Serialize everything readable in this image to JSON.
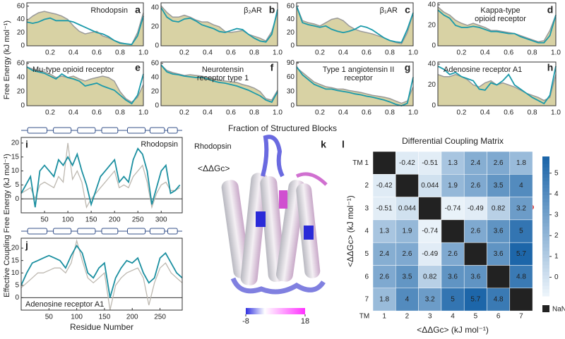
{
  "figure": {
    "top_ylabel": "Free Energy (kJ mol⁻¹)",
    "top_xlabel": "Fraction of Structured Blocks",
    "bottom_ylabel": "Effective Coupling Free Energy (kJ mol⁻¹)"
  },
  "chart_data": [
    {
      "type": "area-line",
      "panel": "a",
      "title": [
        "Rhodopsin"
      ],
      "x": [
        0,
        0.05,
        0.1,
        0.15,
        0.2,
        0.25,
        0.3,
        0.35,
        0.4,
        0.45,
        0.5,
        0.55,
        0.6,
        0.65,
        0.7,
        0.75,
        0.8,
        0.85,
        0.9,
        0.95,
        1
      ],
      "series": [
        {
          "color": "#d8d2a4",
          "values": [
            38,
            45,
            50,
            52,
            50,
            48,
            45,
            40,
            30,
            22,
            18,
            20,
            22,
            15,
            12,
            8,
            5,
            3,
            2,
            20,
            50
          ]
        },
        {
          "color": "#1b9aaa",
          "values": [
            36,
            34,
            36,
            40,
            42,
            38,
            38,
            38,
            36,
            32,
            28,
            24,
            20,
            18,
            14,
            8,
            4,
            3,
            2,
            15,
            45
          ]
        }
      ],
      "xlim": [
        0,
        1
      ],
      "xticks": [
        0.2,
        0.4,
        0.6,
        0.8,
        {
          "value": 1,
          "label": "1.0"
        }
      ],
      "ylim": [
        0,
        65
      ],
      "yticks": [
        0,
        20,
        40,
        60
      ]
    },
    {
      "type": "area-line",
      "panel": "b",
      "title": [
        "β₂AR"
      ],
      "x": [
        0,
        0.05,
        0.1,
        0.15,
        0.2,
        0.25,
        0.3,
        0.35,
        0.4,
        0.45,
        0.5,
        0.55,
        0.6,
        0.65,
        0.7,
        0.75,
        0.8,
        0.85,
        0.9,
        0.95,
        1
      ],
      "series": [
        {
          "color": "#d8d2a4",
          "values": [
            42,
            35,
            30,
            30,
            32,
            30,
            27,
            25,
            25,
            22,
            20,
            15,
            14,
            15,
            16,
            12,
            10,
            8,
            5,
            15,
            35
          ]
        },
        {
          "color": "#1b9aaa",
          "values": [
            40,
            30,
            26,
            25,
            28,
            29,
            26,
            22,
            20,
            18,
            15,
            14,
            16,
            18,
            17,
            12,
            8,
            5,
            4,
            12,
            38
          ]
        }
      ],
      "xlim": [
        0,
        1
      ],
      "xticks": [
        0.2,
        0.4,
        0.6,
        0.8,
        {
          "value": 1,
          "label": "1.0"
        }
      ],
      "ylim": [
        0,
        45
      ],
      "yticks": [
        0,
        20,
        40
      ]
    },
    {
      "type": "area-line",
      "panel": "c",
      "title": [
        "β₁AR"
      ],
      "x": [
        0,
        0.05,
        0.1,
        0.15,
        0.2,
        0.25,
        0.3,
        0.35,
        0.4,
        0.45,
        0.5,
        0.55,
        0.6,
        0.65,
        0.7,
        0.75,
        0.8,
        0.85,
        0.9,
        0.95,
        1
      ],
      "series": [
        {
          "color": "#d8d2a4",
          "values": [
            60,
            38,
            35,
            33,
            30,
            35,
            40,
            42,
            38,
            30,
            25,
            22,
            20,
            18,
            15,
            12,
            8,
            5,
            3,
            20,
            50
          ]
        },
        {
          "color": "#1b9aaa",
          "values": [
            60,
            35,
            32,
            30,
            28,
            30,
            25,
            22,
            20,
            22,
            25,
            30,
            28,
            24,
            18,
            12,
            8,
            6,
            5,
            25,
            50
          ]
        }
      ],
      "xlim": [
        0,
        1
      ],
      "xticks": [
        0.2,
        0.4,
        0.6,
        0.8,
        {
          "value": 1,
          "label": "1.0"
        }
      ],
      "ylim": [
        0,
        65
      ],
      "yticks": [
        0,
        20,
        40,
        60
      ]
    },
    {
      "type": "area-line",
      "panel": "d",
      "title": [
        "Kappa-type",
        "opioid receptor"
      ],
      "x": [
        0,
        0.05,
        0.1,
        0.15,
        0.2,
        0.25,
        0.3,
        0.35,
        0.4,
        0.45,
        0.5,
        0.55,
        0.6,
        0.65,
        0.7,
        0.75,
        0.8,
        0.85,
        0.9,
        0.95,
        1
      ],
      "series": [
        {
          "color": "#d8d2a4",
          "values": [
            38,
            33,
            30,
            25,
            22,
            20,
            22,
            20,
            18,
            15,
            15,
            14,
            13,
            12,
            10,
            8,
            6,
            4,
            5,
            15,
            30
          ]
        },
        {
          "color": "#1b9aaa",
          "values": [
            35,
            30,
            27,
            20,
            18,
            18,
            19,
            18,
            16,
            14,
            14,
            13,
            12,
            12,
            9,
            7,
            5,
            3,
            3,
            10,
            30
          ]
        }
      ],
      "xlim": [
        0,
        1
      ],
      "xticks": [
        0.2,
        0.4,
        0.6,
        0.8,
        {
          "value": 1,
          "label": "1.0"
        }
      ],
      "ylim": [
        0,
        42
      ],
      "yticks": [
        0,
        20,
        40
      ]
    },
    {
      "type": "area-line",
      "panel": "e",
      "title": [
        "Mu-type opioid receptor"
      ],
      "x": [
        0,
        0.05,
        0.1,
        0.15,
        0.2,
        0.25,
        0.3,
        0.35,
        0.4,
        0.45,
        0.5,
        0.55,
        0.6,
        0.65,
        0.7,
        0.75,
        0.8,
        0.85,
        0.9,
        0.95,
        1
      ],
      "series": [
        {
          "color": "#d8d2a4",
          "values": [
            55,
            52,
            50,
            48,
            45,
            40,
            42,
            40,
            42,
            38,
            35,
            38,
            40,
            42,
            40,
            35,
            20,
            10,
            5,
            12,
            30
          ]
        },
        {
          "color": "#1b9aaa",
          "values": [
            55,
            50,
            48,
            46,
            42,
            38,
            45,
            40,
            38,
            35,
            28,
            30,
            32,
            28,
            25,
            22,
            15,
            8,
            3,
            15,
            45
          ]
        }
      ],
      "xlim": [
        0,
        1
      ],
      "xticks": [
        0.2,
        0.4,
        0.6,
        0.8,
        {
          "value": 1,
          "label": "1.0"
        }
      ],
      "ylim": [
        0,
        62
      ],
      "yticks": [
        0,
        20,
        40,
        60
      ]
    },
    {
      "type": "area-line",
      "panel": "f",
      "title": [
        "Neurotensin",
        "receptor type 1"
      ],
      "x": [
        0,
        0.05,
        0.1,
        0.15,
        0.2,
        0.25,
        0.3,
        0.35,
        0.4,
        0.45,
        0.5,
        0.55,
        0.6,
        0.65,
        0.7,
        0.75,
        0.8,
        0.85,
        0.9,
        0.95,
        1
      ],
      "series": [
        {
          "color": "#d8d2a4",
          "values": [
            58,
            50,
            47,
            45,
            43,
            44,
            43,
            42,
            40,
            38,
            36,
            35,
            34,
            33,
            30,
            28,
            25,
            20,
            10,
            8,
            22
          ]
        },
        {
          "color": "#1b9aaa",
          "values": [
            58,
            48,
            45,
            44,
            42,
            41,
            40,
            40,
            38,
            35,
            33,
            32,
            30,
            28,
            25,
            22,
            18,
            14,
            8,
            5,
            20
          ]
        }
      ],
      "xlim": [
        0,
        1
      ],
      "xticks": [
        0.2,
        0.4,
        0.6,
        0.8,
        {
          "value": 1,
          "label": "1.0"
        }
      ],
      "ylim": [
        0,
        62
      ],
      "yticks": [
        0,
        20,
        40,
        60
      ]
    },
    {
      "type": "area-line",
      "panel": "g",
      "title": [
        "Type 1 angiotensin II",
        "receptor"
      ],
      "x": [
        0,
        0.05,
        0.1,
        0.15,
        0.2,
        0.25,
        0.3,
        0.35,
        0.4,
        0.45,
        0.5,
        0.55,
        0.6,
        0.65,
        0.7,
        0.75,
        0.8,
        0.85,
        0.9,
        0.95,
        1
      ],
      "series": [
        {
          "color": "#d8d2a4",
          "values": [
            80,
            70,
            60,
            50,
            45,
            40,
            38,
            35,
            35,
            32,
            30,
            28,
            25,
            22,
            20,
            18,
            15,
            10,
            5,
            10,
            40
          ]
        },
        {
          "color": "#1b9aaa",
          "values": [
            82,
            65,
            55,
            45,
            40,
            35,
            35,
            32,
            30,
            28,
            25,
            23,
            20,
            18,
            15,
            12,
            8,
            3,
            0,
            5,
            60
          ]
        }
      ],
      "xlim": [
        0,
        1
      ],
      "xticks": [
        0.2,
        0.4,
        0.6,
        0.8,
        {
          "value": 1,
          "label": "1.0"
        }
      ],
      "ylim": [
        0,
        92
      ],
      "yticks": [
        0,
        30,
        60,
        90
      ]
    },
    {
      "type": "area-line",
      "panel": "h",
      "title": [
        "Adenosine receptor A1"
      ],
      "x": [
        0,
        0.05,
        0.1,
        0.15,
        0.2,
        0.25,
        0.3,
        0.35,
        0.4,
        0.45,
        0.5,
        0.55,
        0.6,
        0.65,
        0.7,
        0.75,
        0.8,
        0.85,
        0.9,
        0.95,
        1
      ],
      "series": [
        {
          "color": "#d8d2a4",
          "values": [
            30,
            28,
            28,
            30,
            28,
            25,
            20,
            18,
            22,
            24,
            20,
            22,
            20,
            18,
            15,
            12,
            10,
            8,
            5,
            8,
            30
          ]
        },
        {
          "color": "#1b9aaa",
          "values": [
            38,
            35,
            30,
            32,
            28,
            26,
            24,
            16,
            15,
            22,
            20,
            24,
            30,
            20,
            16,
            12,
            8,
            5,
            2,
            10,
            38
          ]
        }
      ],
      "xlim": [
        0,
        1
      ],
      "xticks": [
        0.2,
        0.4,
        0.6,
        0.8,
        {
          "value": 1,
          "label": "1.0"
        }
      ],
      "ylim": [
        0,
        42
      ],
      "yticks": [
        0,
        20,
        40
      ]
    },
    {
      "type": "line",
      "panel": "i",
      "title": "Rhodopsin",
      "x": [
        0,
        10,
        20,
        30,
        40,
        50,
        60,
        70,
        80,
        90,
        100,
        110,
        120,
        130,
        140,
        150,
        160,
        170,
        180,
        190,
        200,
        210,
        220,
        230,
        240,
        250,
        260,
        270,
        280,
        290,
        300,
        310,
        320,
        330,
        340
      ],
      "series": [
        {
          "color": "#bdb8b0",
          "values": [
            2,
            3,
            4,
            0,
            5,
            6,
            5,
            4,
            8,
            6,
            20,
            7,
            10,
            6,
            -3,
            0,
            2,
            4,
            6,
            8,
            10,
            4,
            5,
            4,
            8,
            10,
            12,
            6,
            -3,
            2,
            5,
            6,
            3,
            3,
            4
          ]
        },
        {
          "color": "#1b8fa0",
          "values": [
            2,
            5,
            8,
            -3,
            10,
            12,
            10,
            8,
            14,
            12,
            15,
            12,
            16,
            10,
            5,
            -2,
            3,
            8,
            10,
            12,
            14,
            6,
            8,
            6,
            14,
            18,
            16,
            10,
            -2,
            4,
            10,
            12,
            2,
            3,
            5
          ]
        }
      ],
      "xlim": [
        0,
        345
      ],
      "xticks": [
        50,
        100,
        150,
        200,
        250,
        300
      ],
      "ylim": [
        -5,
        22
      ],
      "yticks": [
        0,
        5,
        10,
        15,
        20
      ]
    },
    {
      "type": "line",
      "panel": "j",
      "title": "Adenosine receptor A1",
      "xlabel": "Residue Number",
      "x": [
        0,
        10,
        20,
        30,
        40,
        50,
        60,
        70,
        80,
        90,
        100,
        110,
        120,
        130,
        140,
        150,
        160,
        170,
        180,
        190,
        200,
        210,
        220,
        230,
        240,
        250,
        260,
        270,
        280,
        290
      ],
      "series": [
        {
          "color": "#bdb8b0",
          "values": [
            4,
            6,
            8,
            10,
            10,
            11,
            12,
            12,
            10,
            14,
            23,
            15,
            8,
            6,
            8,
            10,
            -5,
            5,
            8,
            10,
            11,
            12,
            8,
            -3,
            6,
            12,
            14,
            10,
            8,
            6
          ]
        },
        {
          "color": "#1b8fa0",
          "values": [
            5,
            10,
            14,
            15,
            16,
            17,
            16,
            15,
            12,
            17,
            21,
            18,
            10,
            8,
            12,
            14,
            0,
            8,
            12,
            15,
            14,
            16,
            10,
            6,
            8,
            16,
            18,
            14,
            10,
            8
          ]
        }
      ],
      "xlim": [
        0,
        290
      ],
      "xticks": [
        50,
        100,
        150,
        200,
        250
      ],
      "ylim": [
        -5,
        24
      ],
      "yticks": [
        0,
        5,
        10,
        15,
        20
      ]
    },
    {
      "type": "structure",
      "panel": "k",
      "title": "Rhodopsin",
      "label": "<ΔΔGc>",
      "clim": [
        -8,
        18
      ],
      "cticks": [
        -8,
        18
      ]
    },
    {
      "type": "heatmap",
      "panel": "l",
      "title": "Differential Coupling Matrix",
      "xlabel": "<ΔΔGc> (kJ mol⁻¹)",
      "ylabel": "<ΔΔGc> (kJ mol⁻¹)",
      "corner_label": "TM",
      "row_labels": [
        "TM 1",
        "2",
        "3",
        "4",
        "5",
        "6",
        "7"
      ],
      "col_labels": [
        "1",
        "2",
        "3",
        "4",
        "5",
        "6",
        "7"
      ],
      "values": [
        [
          null,
          -0.42,
          -0.51,
          1.3,
          2.4,
          2.6,
          1.8
        ],
        [
          -0.42,
          null,
          0.044,
          1.9,
          2.6,
          3.5,
          4
        ],
        [
          -0.51,
          0.044,
          null,
          -0.74,
          -0.49,
          0.82,
          3.2
        ],
        [
          1.3,
          1.9,
          -0.74,
          null,
          2.6,
          3.6,
          5
        ],
        [
          2.4,
          2.6,
          -0.49,
          2.6,
          null,
          3.6,
          5.7
        ],
        [
          2.6,
          3.5,
          0.82,
          3.6,
          3.6,
          null,
          4.8
        ],
        [
          1.8,
          4,
          3.2,
          5,
          5.7,
          4.8,
          null
        ]
      ],
      "clim": [
        -0.9,
        5.8
      ],
      "cticks": [
        0,
        1,
        2,
        3,
        4,
        5
      ],
      "low_color": "#eef5fb",
      "high_color": "#1a64a8",
      "nan_color": "#222222",
      "nan_label": "NaN"
    }
  ]
}
